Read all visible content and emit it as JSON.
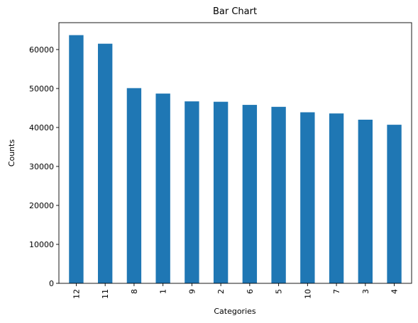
{
  "chart_data": {
    "type": "bar",
    "title": "Bar Chart",
    "xlabel": "Categories",
    "ylabel": "Counts",
    "categories": [
      "12",
      "11",
      "8",
      "1",
      "9",
      "2",
      "6",
      "5",
      "10",
      "7",
      "3",
      "4"
    ],
    "values": [
      63700,
      61500,
      50100,
      48700,
      46700,
      46600,
      45800,
      45300,
      43900,
      43600,
      42000,
      40700
    ],
    "ylim": [
      0,
      66900
    ],
    "yticks": [
      "0",
      "10000",
      "20000",
      "30000",
      "40000",
      "50000",
      "60000"
    ],
    "bar_color": "#1f77b4",
    "grid": false,
    "legend": "none"
  }
}
